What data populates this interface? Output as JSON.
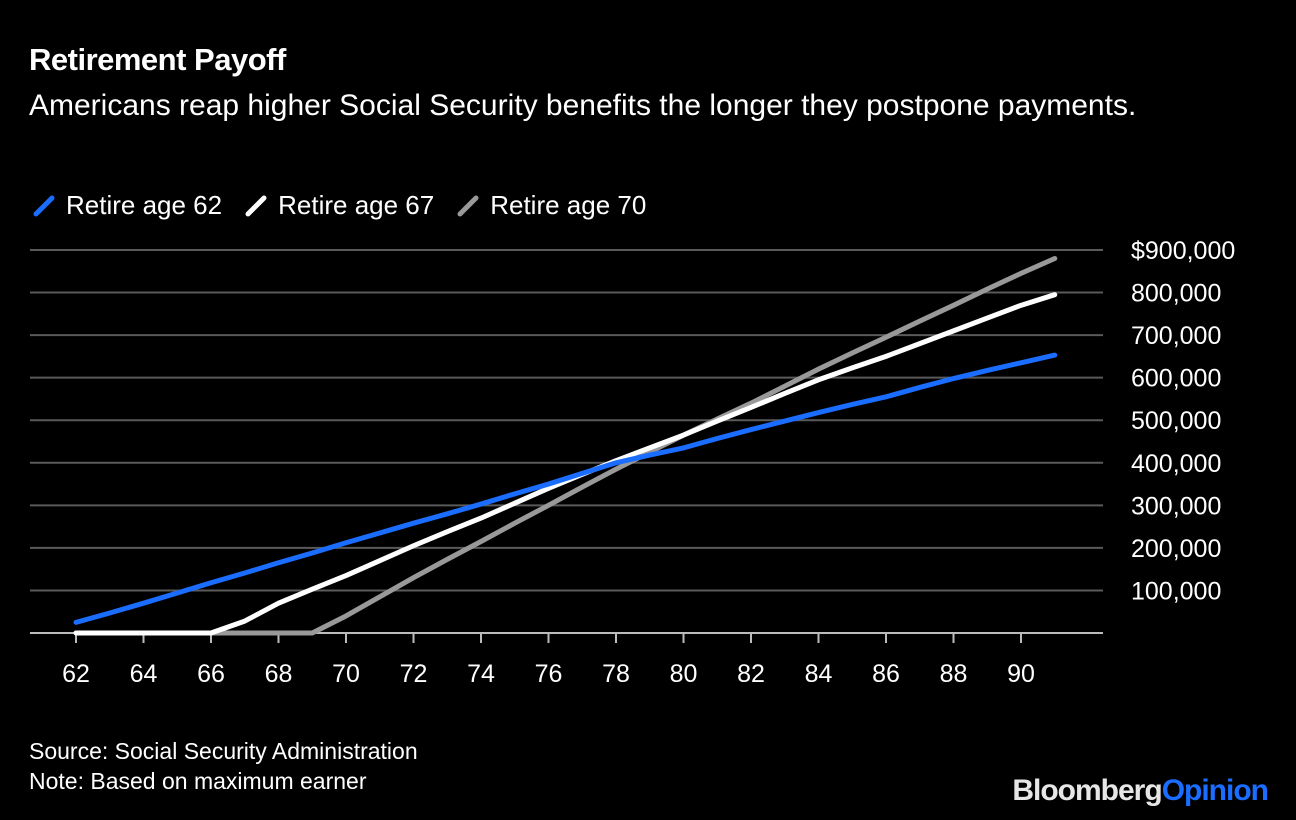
{
  "title": "Retirement Payoff",
  "subtitle": "Americans reap higher Social Security benefits the longer they postpone payments.",
  "source": "Source: Social Security Administration",
  "note": "Note: Based on maximum earner",
  "logo": {
    "part1": "Bloomberg",
    "part2": "Opinion"
  },
  "chart_data": {
    "type": "line",
    "title": "Retirement Payoff",
    "xlabel": "",
    "ylabel": "",
    "x": [
      62,
      63,
      64,
      65,
      66,
      67,
      68,
      69,
      70,
      71,
      72,
      73,
      74,
      75,
      76,
      77,
      78,
      79,
      80,
      81,
      82,
      83,
      84,
      85,
      86,
      87,
      88,
      89,
      90,
      91
    ],
    "xlim": [
      61.5,
      92.5
    ],
    "ylim": [
      0,
      900000
    ],
    "x_ticks": [
      62,
      64,
      66,
      68,
      70,
      72,
      74,
      76,
      78,
      80,
      82,
      84,
      86,
      88,
      90
    ],
    "y_ticks": [
      100000,
      200000,
      300000,
      400000,
      500000,
      600000,
      700000,
      800000,
      900000
    ],
    "y_tick_labels": [
      "100,000",
      "200,000",
      "300,000",
      "400,000",
      "500,000",
      "600,000",
      "700,000",
      "800,000",
      "$900,000"
    ],
    "grid": true,
    "legend_position": "top-left",
    "series": [
      {
        "name": "Retire age 62",
        "color": "#1a6dff",
        "values": [
          25000,
          47000,
          70000,
          94000,
          118000,
          141000,
          165000,
          188000,
          212000,
          235000,
          258000,
          280000,
          303000,
          327000,
          350000,
          375000,
          400000,
          418000,
          435000,
          457000,
          478000,
          498000,
          518000,
          537000,
          555000,
          577000,
          598000,
          617000,
          635000,
          653000
        ]
      },
      {
        "name": "Retire age 67",
        "color": "#ffffff",
        "values": [
          0,
          0,
          0,
          0,
          0,
          28000,
          70000,
          103000,
          135000,
          170000,
          205000,
          238000,
          270000,
          305000,
          340000,
          373000,
          405000,
          435000,
          465000,
          498000,
          530000,
          563000,
          595000,
          623000,
          650000,
          680000,
          710000,
          740000,
          770000,
          795000
        ]
      },
      {
        "name": "Retire age 70",
        "color": "#999999",
        "values": [
          0,
          0,
          0,
          0,
          0,
          0,
          0,
          0,
          40000,
          85000,
          130000,
          173000,
          215000,
          258000,
          300000,
          343000,
          385000,
          425000,
          465000,
          503000,
          540000,
          580000,
          620000,
          658000,
          695000,
          733000,
          770000,
          808000,
          845000,
          880000
        ]
      }
    ]
  }
}
